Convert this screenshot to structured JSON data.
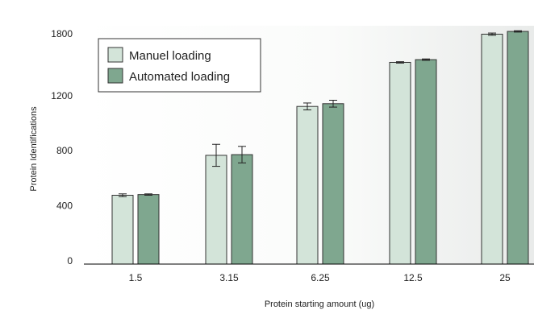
{
  "chart_data": {
    "type": "bar",
    "title": "",
    "xlabel": "Protein starting amount (ug)",
    "ylabel": "Protein Identifications",
    "categories": [
      "1.5",
      "3.15",
      "6.25",
      "12.5",
      "25"
    ],
    "ylim": [
      0,
      1800
    ],
    "yticks": [
      0,
      400,
      800,
      1200,
      1800
    ],
    "legend_position": "top-left",
    "grid": false,
    "series": [
      {
        "name": "Manuel loading",
        "color": "#d3e4d9",
        "values": [
          500,
          790,
          1145,
          1465,
          1670
        ],
        "errors": [
          10,
          80,
          25,
          5,
          8
        ]
      },
      {
        "name": "Automated loading",
        "color": "#7fa78f",
        "values": [
          505,
          795,
          1165,
          1485,
          1690
        ],
        "errors": [
          5,
          60,
          25,
          5,
          5
        ]
      }
    ]
  }
}
